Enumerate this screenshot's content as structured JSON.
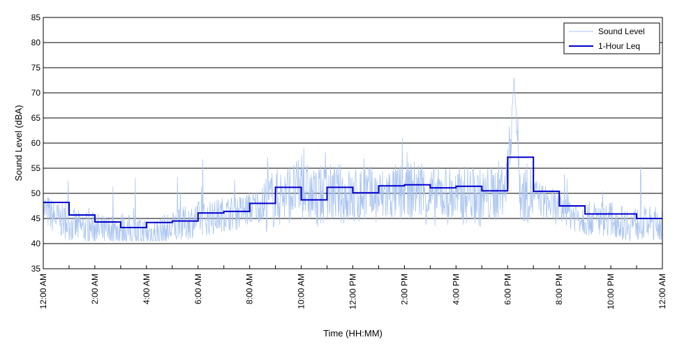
{
  "chart_data": {
    "type": "line",
    "title": "",
    "xlabel": "Time (HH:MM)",
    "ylabel": "Sound Level (dBA)",
    "ylim": [
      35,
      85
    ],
    "yticks": [
      35,
      40,
      45,
      50,
      55,
      60,
      65,
      70,
      75,
      80,
      85
    ],
    "xlim_hours": [
      0,
      24
    ],
    "xticks": [
      {
        "hour": 0,
        "label": "12:00 AM"
      },
      {
        "hour": 2,
        "label": "2:00 AM"
      },
      {
        "hour": 4,
        "label": "4:00 AM"
      },
      {
        "hour": 6,
        "label": "6:00 AM"
      },
      {
        "hour": 8,
        "label": "8:00 AM"
      },
      {
        "hour": 10,
        "label": "10:00 AM"
      },
      {
        "hour": 12,
        "label": "12:00 PM"
      },
      {
        "hour": 14,
        "label": "2:00 PM"
      },
      {
        "hour": 16,
        "label": "4:00 PM"
      },
      {
        "hour": 18,
        "label": "6:00 PM"
      },
      {
        "hour": 20,
        "label": "8:00 PM"
      },
      {
        "hour": 22,
        "label": "10:00 PM"
      },
      {
        "hour": 24,
        "label": "12:00 AM"
      }
    ],
    "grid": "horizontal",
    "legend_position": "top-right",
    "series": [
      {
        "name": "Sound Level",
        "color": "#a9c4f0",
        "style": "thin noisy line",
        "x_hours": [
          0,
          0.5,
          1,
          1.5,
          2,
          2.5,
          3,
          3.5,
          4,
          4.5,
          5,
          5.5,
          6,
          6.5,
          7,
          7.5,
          8,
          8.5,
          9,
          9.5,
          10,
          10.5,
          11,
          11.5,
          12,
          12.5,
          13,
          13.5,
          14,
          14.5,
          15,
          15.5,
          16,
          16.5,
          17,
          17.5,
          18,
          18.25,
          18.5,
          19,
          19.5,
          20,
          20.5,
          21,
          21.5,
          22,
          22.5,
          23,
          23.5,
          24
        ],
        "values": [
          47,
          45,
          44,
          43,
          43,
          42,
          43,
          42,
          42,
          42,
          43,
          44,
          45,
          45,
          46,
          46,
          47,
          48,
          49,
          50,
          51,
          49,
          50,
          50,
          49,
          50,
          49,
          50,
          50,
          51,
          49,
          50,
          49,
          50,
          49,
          50,
          52,
          73,
          50,
          50,
          48,
          47,
          46,
          45,
          45,
          45,
          44,
          44,
          44,
          44
        ]
      },
      {
        "name": "1-Hour Leq",
        "color": "#0000cc",
        "style": "step",
        "hour_start": [
          0,
          1,
          2,
          3,
          4,
          5,
          6,
          7,
          8,
          9,
          10,
          11,
          12,
          13,
          14,
          15,
          16,
          17,
          18,
          19,
          20,
          21,
          22,
          23
        ],
        "values": [
          48.2,
          45.7,
          44.3,
          43.2,
          44.2,
          44.5,
          46.1,
          46.4,
          48.0,
          51.2,
          48.7,
          51.2,
          50.1,
          51.5,
          51.7,
          51.1,
          51.4,
          50.5,
          57.2,
          50.4,
          47.5,
          45.9,
          45.9,
          45.0
        ]
      }
    ]
  }
}
